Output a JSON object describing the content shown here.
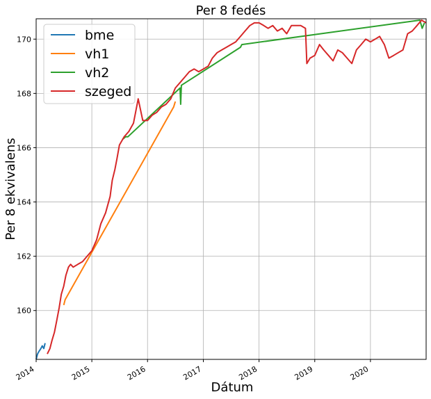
{
  "chart_data": {
    "type": "line",
    "title": "Per 8 fedés",
    "xlabel": "Dátum",
    "ylabel": "Per 8 ekvivalens",
    "grid": true,
    "legend_position": "top-left",
    "xlim": [
      "2014-01-01",
      "2020-12-31"
    ],
    "ylim": [
      158.2,
      170.75
    ],
    "x_ticks": [
      "2014",
      "2015",
      "2016",
      "2017",
      "2018",
      "2019",
      "2020"
    ],
    "y_ticks": [
      160,
      162,
      164,
      166,
      168,
      170
    ],
    "series": [
      {
        "name": "bme",
        "color": "#1f77b4",
        "x": [
          "2014-01-01",
          "2014-01-10",
          "2014-01-20",
          "2014-02-01",
          "2014-02-10",
          "2014-02-20",
          "2014-03-01"
        ],
        "y": [
          158.2,
          158.4,
          158.5,
          158.6,
          158.7,
          158.6,
          158.8
        ]
      },
      {
        "name": "vh1",
        "color": "#ff7f0e",
        "x": [
          "2014-07-01",
          "2014-07-10",
          "2016-06-20",
          "2016-07-01"
        ],
        "y": [
          160.2,
          160.4,
          167.5,
          167.7
        ]
      },
      {
        "name": "vh2",
        "color": "#2ca02c",
        "x": [
          "2015-07-20",
          "2015-08-10",
          "2015-08-25",
          "2016-08-01",
          "2016-08-05",
          "2016-08-10",
          "2017-09-01",
          "2017-09-10",
          "2020-11-20",
          "2020-12-05",
          "2020-12-20"
        ],
        "y": [
          166.3,
          166.4,
          166.4,
          168.2,
          167.6,
          168.3,
          169.7,
          169.8,
          170.7,
          170.4,
          170.6
        ]
      },
      {
        "name": "szeged",
        "color": "#d62728",
        "x": [
          "2014-03-15",
          "2014-04-01",
          "2014-04-15",
          "2014-05-01",
          "2014-05-15",
          "2014-06-01",
          "2014-06-15",
          "2014-07-01",
          "2014-07-15",
          "2014-08-01",
          "2014-08-15",
          "2014-09-01",
          "2014-10-01",
          "2014-11-01",
          "2014-12-01",
          "2015-01-01",
          "2015-02-01",
          "2015-03-01",
          "2015-04-01",
          "2015-05-01",
          "2015-05-15",
          "2015-06-01",
          "2015-06-15",
          "2015-07-01",
          "2015-08-01",
          "2015-09-01",
          "2015-10-01",
          "2015-11-01",
          "2015-12-01",
          "2016-01-01",
          "2016-02-01",
          "2016-03-01",
          "2016-04-01",
          "2016-05-01",
          "2016-06-01",
          "2016-07-01",
          "2016-08-01",
          "2016-09-01",
          "2016-10-01",
          "2016-11-01",
          "2016-12-01",
          "2017-01-01",
          "2017-02-01",
          "2017-03-01",
          "2017-04-01",
          "2017-05-01",
          "2017-06-01",
          "2017-07-01",
          "2017-08-01",
          "2017-09-01",
          "2017-10-01",
          "2017-11-01",
          "2017-12-01",
          "2018-01-01",
          "2018-02-01",
          "2018-03-01",
          "2018-04-01",
          "2018-05-01",
          "2018-06-01",
          "2018-07-01",
          "2018-08-01",
          "2018-09-01",
          "2018-10-01",
          "2018-11-01",
          "2018-11-10",
          "2018-12-01",
          "2019-01-01",
          "2019-02-01",
          "2019-03-01",
          "2019-04-01",
          "2019-05-01",
          "2019-06-01",
          "2019-07-01",
          "2019-08-01",
          "2019-09-01",
          "2019-10-01",
          "2019-11-01",
          "2019-12-01",
          "2020-01-01",
          "2020-02-01",
          "2020-03-01",
          "2020-04-01",
          "2020-05-01",
          "2020-06-01",
          "2020-07-01",
          "2020-08-01",
          "2020-09-01",
          "2020-10-01",
          "2020-11-01",
          "2020-12-01",
          "2020-12-31"
        ],
        "y": [
          158.4,
          158.6,
          158.9,
          159.2,
          159.6,
          160.1,
          160.6,
          160.9,
          161.3,
          161.6,
          161.7,
          161.6,
          161.7,
          161.8,
          162.0,
          162.2,
          162.6,
          163.2,
          163.6,
          164.2,
          164.8,
          165.2,
          165.6,
          166.1,
          166.4,
          166.6,
          166.9,
          167.8,
          167.0,
          167.0,
          167.2,
          167.3,
          167.5,
          167.6,
          167.8,
          168.2,
          168.4,
          168.6,
          168.8,
          168.9,
          168.8,
          168.9,
          169.0,
          169.3,
          169.5,
          169.6,
          169.7,
          169.8,
          169.9,
          170.1,
          170.3,
          170.5,
          170.6,
          170.6,
          170.5,
          170.4,
          170.5,
          170.3,
          170.4,
          170.2,
          170.5,
          170.5,
          170.5,
          170.4,
          169.1,
          169.3,
          169.4,
          169.8,
          169.6,
          169.4,
          169.2,
          169.6,
          169.5,
          169.3,
          169.1,
          169.6,
          169.8,
          170.0,
          169.9,
          170.0,
          170.1,
          169.8,
          169.3,
          169.4,
          169.5,
          169.6,
          170.2,
          170.3,
          170.5,
          170.7,
          170.6
        ]
      }
    ]
  }
}
